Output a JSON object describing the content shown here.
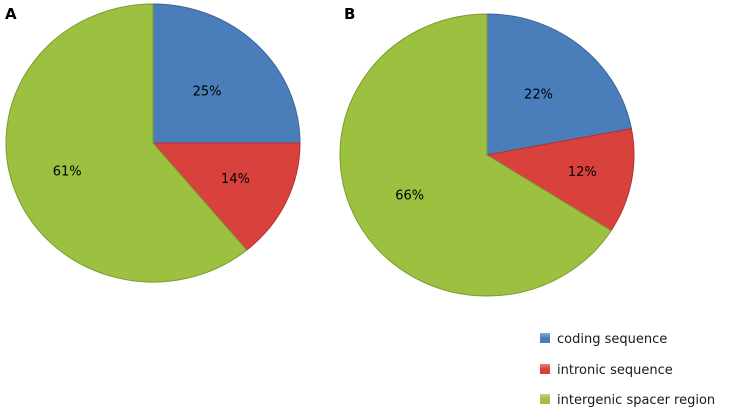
{
  "chart_data": [
    {
      "type": "pie",
      "panel_label": "A",
      "categories": [
        "coding sequence",
        "intronic sequence",
        "intergenic spacer region"
      ],
      "values": [
        25,
        14,
        61
      ],
      "data_labels": [
        "25%",
        "14%",
        "61%"
      ],
      "colors": [
        "#4a7ebb",
        "#d9413d",
        "#9cc03f"
      ],
      "start_angle_deg": 0,
      "direction": "clockwise"
    },
    {
      "type": "pie",
      "panel_label": "B",
      "categories": [
        "coding sequence",
        "intronic sequence",
        "intergenic spacer region"
      ],
      "values": [
        22,
        12,
        66
      ],
      "data_labels": [
        "22%",
        "12%",
        "66%"
      ],
      "colors": [
        "#4a7ebb",
        "#d9413d",
        "#9cc03f"
      ],
      "start_angle_deg": 0,
      "direction": "clockwise"
    }
  ],
  "legend": {
    "placement": "bottom-right",
    "items": [
      {
        "label": "coding sequence",
        "color": "#4a7ebb"
      },
      {
        "label": "intronic sequence",
        "color": "#d9413d"
      },
      {
        "label": "intergenic spacer region",
        "color": "#9cc03f"
      }
    ]
  }
}
